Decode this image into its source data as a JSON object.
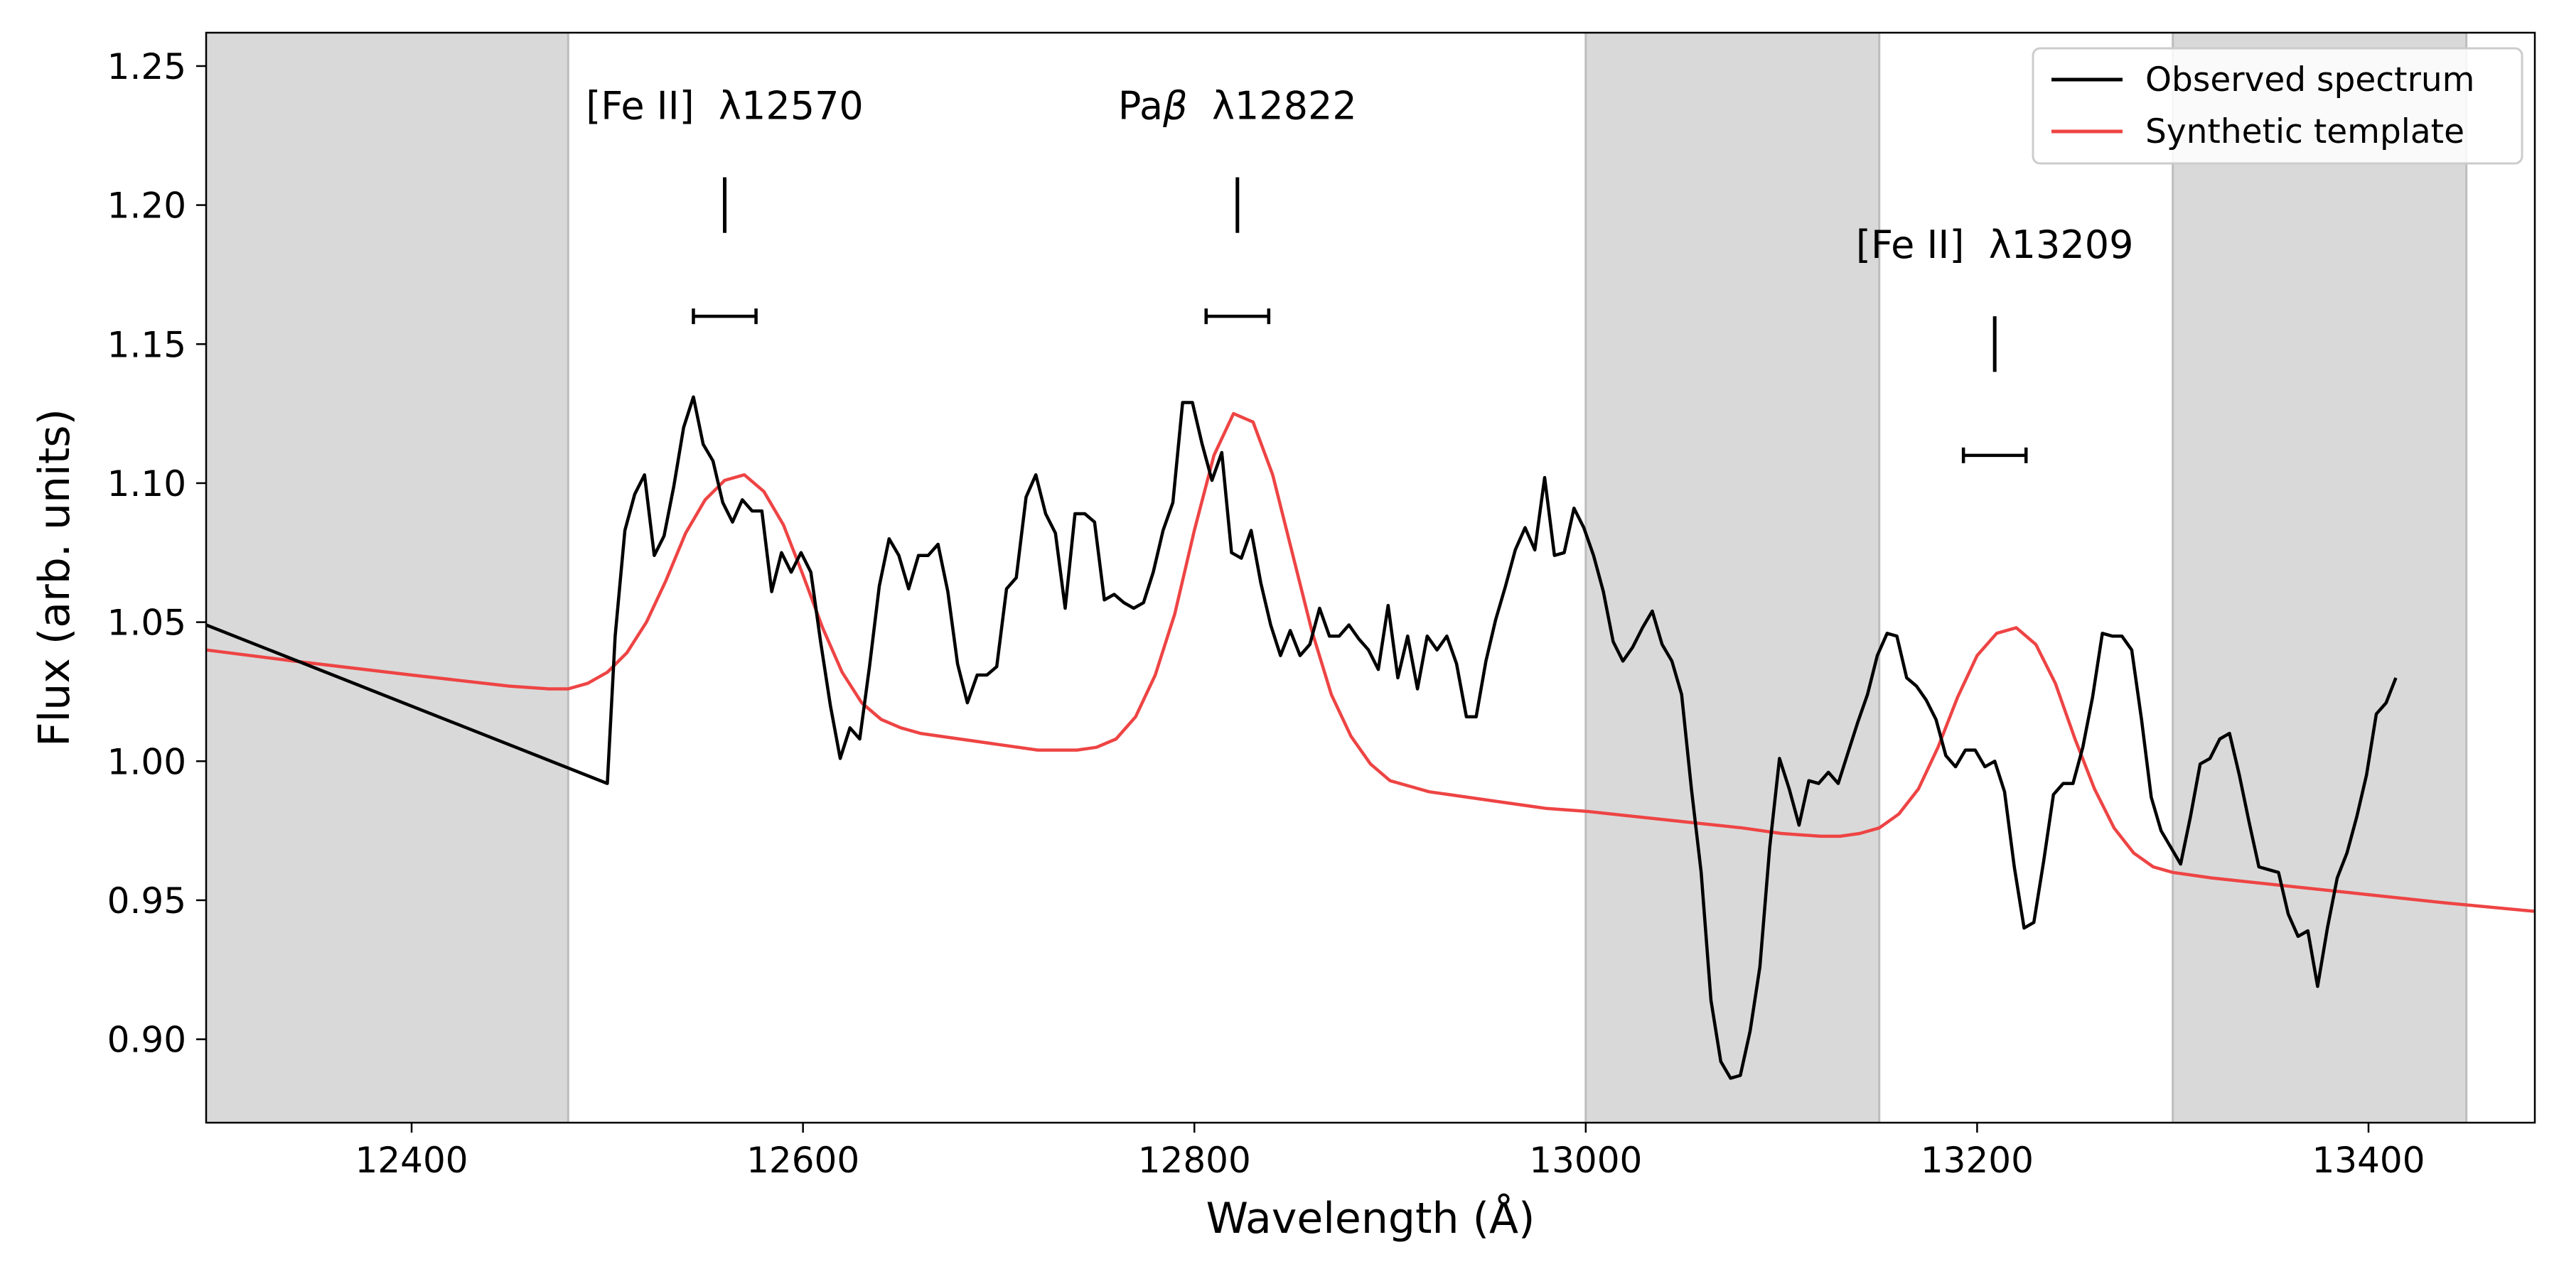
{
  "chart_data": {
    "type": "line",
    "title": "",
    "xlabel": "Wavelength (Å)",
    "ylabel": "Flux (arb. units)",
    "xlim": [
      12295,
      13485
    ],
    "ylim": [
      0.87,
      1.262
    ],
    "xticks": [
      12400,
      12600,
      12800,
      13000,
      13200,
      13400
    ],
    "yticks": [
      0.9,
      0.95,
      1.0,
      1.05,
      1.1,
      1.15,
      1.2,
      1.25
    ],
    "ytick_format": 2,
    "grid": false,
    "legend_position": "top-right",
    "shaded_regions": [
      [
        12295,
        12480
      ],
      [
        13000,
        13150
      ],
      [
        13300,
        13450
      ]
    ],
    "series": [
      {
        "name": "Observed spectrum",
        "color": "#000000",
        "points": [
          [
            12295,
            1.049
          ],
          [
            12500,
            0.992
          ],
          [
            12504,
            1.045
          ],
          [
            12509,
            1.083
          ],
          [
            12514,
            1.096
          ],
          [
            12519,
            1.103
          ],
          [
            12524,
            1.074
          ],
          [
            12529,
            1.081
          ],
          [
            12534,
            1.099
          ],
          [
            12539,
            1.12
          ],
          [
            12544,
            1.131
          ],
          [
            12549,
            1.114
          ],
          [
            12554,
            1.108
          ],
          [
            12559,
            1.093
          ],
          [
            12564,
            1.086
          ],
          [
            12569,
            1.094
          ],
          [
            12574,
            1.09
          ],
          [
            12579,
            1.09
          ],
          [
            12584,
            1.061
          ],
          [
            12589,
            1.075
          ],
          [
            12594,
            1.068
          ],
          [
            12599,
            1.075
          ],
          [
            12604,
            1.068
          ],
          [
            12609,
            1.043
          ],
          [
            12614,
            1.02
          ],
          [
            12619,
            1.001
          ],
          [
            12624,
            1.012
          ],
          [
            12629,
            1.008
          ],
          [
            12634,
            1.034
          ],
          [
            12639,
            1.063
          ],
          [
            12644,
            1.08
          ],
          [
            12649,
            1.074
          ],
          [
            12654,
            1.062
          ],
          [
            12659,
            1.074
          ],
          [
            12664,
            1.074
          ],
          [
            12669,
            1.078
          ],
          [
            12674,
            1.061
          ],
          [
            12679,
            1.035
          ],
          [
            12684,
            1.021
          ],
          [
            12689,
            1.031
          ],
          [
            12694,
            1.031
          ],
          [
            12699,
            1.034
          ],
          [
            12704,
            1.062
          ],
          [
            12709,
            1.066
          ],
          [
            12714,
            1.095
          ],
          [
            12719,
            1.103
          ],
          [
            12724,
            1.089
          ],
          [
            12729,
            1.082
          ],
          [
            12734,
            1.055
          ],
          [
            12739,
            1.089
          ],
          [
            12744,
            1.089
          ],
          [
            12749,
            1.086
          ],
          [
            12754,
            1.058
          ],
          [
            12759,
            1.06
          ],
          [
            12764,
            1.057
          ],
          [
            12769,
            1.055
          ],
          [
            12774,
            1.057
          ],
          [
            12779,
            1.068
          ],
          [
            12784,
            1.083
          ],
          [
            12789,
            1.093
          ],
          [
            12794,
            1.129
          ],
          [
            12799,
            1.129
          ],
          [
            12804,
            1.114
          ],
          [
            12809,
            1.101
          ],
          [
            12814,
            1.111
          ],
          [
            12819,
            1.075
          ],
          [
            12824,
            1.073
          ],
          [
            12829,
            1.083
          ],
          [
            12834,
            1.064
          ],
          [
            12839,
            1.049
          ],
          [
            12844,
            1.038
          ],
          [
            12849,
            1.047
          ],
          [
            12854,
            1.038
          ],
          [
            12859,
            1.042
          ],
          [
            12864,
            1.055
          ],
          [
            12869,
            1.045
          ],
          [
            12874,
            1.045
          ],
          [
            12879,
            1.049
          ],
          [
            12884,
            1.044
          ],
          [
            12889,
            1.04
          ],
          [
            12894,
            1.033
          ],
          [
            12899,
            1.056
          ],
          [
            12904,
            1.03
          ],
          [
            12909,
            1.045
          ],
          [
            12914,
            1.026
          ],
          [
            12919,
            1.045
          ],
          [
            12924,
            1.04
          ],
          [
            12929,
            1.045
          ],
          [
            12934,
            1.035
          ],
          [
            12939,
            1.016
          ],
          [
            12944,
            1.016
          ],
          [
            12949,
            1.036
          ],
          [
            12954,
            1.051
          ],
          [
            12959,
            1.063
          ],
          [
            12964,
            1.076
          ],
          [
            12969,
            1.084
          ],
          [
            12974,
            1.076
          ],
          [
            12979,
            1.102
          ],
          [
            12984,
            1.074
          ],
          [
            12989,
            1.075
          ],
          [
            12994,
            1.091
          ],
          [
            12999,
            1.084
          ],
          [
            13004,
            1.074
          ],
          [
            13009,
            1.061
          ],
          [
            13014,
            1.043
          ],
          [
            13019,
            1.036
          ],
          [
            13024,
            1.041
          ],
          [
            13029,
            1.048
          ],
          [
            13034,
            1.054
          ],
          [
            13039,
            1.042
          ],
          [
            13044,
            1.036
          ],
          [
            13049,
            1.024
          ],
          [
            13054,
            0.99
          ],
          [
            13059,
            0.96
          ],
          [
            13064,
            0.914
          ],
          [
            13069,
            0.892
          ],
          [
            13074,
            0.886
          ],
          [
            13079,
            0.887
          ],
          [
            13084,
            0.903
          ],
          [
            13089,
            0.926
          ],
          [
            13094,
            0.969
          ],
          [
            13099,
            1.001
          ],
          [
            13104,
            0.99
          ],
          [
            13109,
            0.977
          ],
          [
            13114,
            0.993
          ],
          [
            13119,
            0.992
          ],
          [
            13124,
            0.996
          ],
          [
            13129,
            0.992
          ],
          [
            13134,
            1.003
          ],
          [
            13139,
            1.014
          ],
          [
            13144,
            1.024
          ],
          [
            13149,
            1.038
          ],
          [
            13154,
            1.046
          ],
          [
            13159,
            1.045
          ],
          [
            13164,
            1.03
          ],
          [
            13169,
            1.027
          ],
          [
            13174,
            1.022
          ],
          [
            13179,
            1.015
          ],
          [
            13184,
            1.002
          ],
          [
            13189,
            0.998
          ],
          [
            13194,
            1.004
          ],
          [
            13199,
            1.004
          ],
          [
            13204,
            0.998
          ],
          [
            13209,
            1.0
          ],
          [
            13214,
            0.989
          ],
          [
            13219,
            0.962
          ],
          [
            13224,
            0.94
          ],
          [
            13229,
            0.942
          ],
          [
            13234,
            0.964
          ],
          [
            13239,
            0.988
          ],
          [
            13244,
            0.992
          ],
          [
            13249,
            0.992
          ],
          [
            13254,
            1.005
          ],
          [
            13259,
            1.023
          ],
          [
            13264,
            1.046
          ],
          [
            13269,
            1.045
          ],
          [
            13274,
            1.045
          ],
          [
            13279,
            1.04
          ],
          [
            13284,
            1.015
          ],
          [
            13289,
            0.987
          ],
          [
            13294,
            0.975
          ],
          [
            13299,
            0.969
          ],
          [
            13304,
            0.963
          ],
          [
            13309,
            0.98
          ],
          [
            13314,
            0.999
          ],
          [
            13319,
            1.001
          ],
          [
            13324,
            1.008
          ],
          [
            13329,
            1.01
          ],
          [
            13334,
            0.995
          ],
          [
            13339,
            0.978
          ],
          [
            13344,
            0.962
          ],
          [
            13349,
            0.961
          ],
          [
            13354,
            0.96
          ],
          [
            13359,
            0.945
          ],
          [
            13364,
            0.937
          ],
          [
            13369,
            0.939
          ],
          [
            13374,
            0.919
          ],
          [
            13379,
            0.94
          ],
          [
            13384,
            0.958
          ],
          [
            13389,
            0.967
          ],
          [
            13394,
            0.98
          ],
          [
            13399,
            0.995
          ],
          [
            13404,
            1.017
          ],
          [
            13409,
            1.021
          ],
          [
            13414,
            1.03
          ]
        ]
      },
      {
        "name": "Synthetic template",
        "color": "#ee4444",
        "points": [
          [
            12295,
            1.04
          ],
          [
            12340,
            1.036
          ],
          [
            12400,
            1.031
          ],
          [
            12450,
            1.027
          ],
          [
            12470,
            1.026
          ],
          [
            12480,
            1.026
          ],
          [
            12490,
            1.028
          ],
          [
            12500,
            1.032
          ],
          [
            12510,
            1.039
          ],
          [
            12520,
            1.05
          ],
          [
            12530,
            1.065
          ],
          [
            12540,
            1.082
          ],
          [
            12550,
            1.094
          ],
          [
            12560,
            1.101
          ],
          [
            12570,
            1.103
          ],
          [
            12580,
            1.097
          ],
          [
            12590,
            1.085
          ],
          [
            12600,
            1.067
          ],
          [
            12610,
            1.048
          ],
          [
            12620,
            1.032
          ],
          [
            12630,
            1.021
          ],
          [
            12640,
            1.015
          ],
          [
            12650,
            1.012
          ],
          [
            12660,
            1.01
          ],
          [
            12680,
            1.008
          ],
          [
            12700,
            1.006
          ],
          [
            12720,
            1.004
          ],
          [
            12740,
            1.004
          ],
          [
            12750,
            1.005
          ],
          [
            12760,
            1.008
          ],
          [
            12770,
            1.016
          ],
          [
            12780,
            1.031
          ],
          [
            12790,
            1.053
          ],
          [
            12800,
            1.083
          ],
          [
            12810,
            1.11
          ],
          [
            12820,
            1.125
          ],
          [
            12830,
            1.122
          ],
          [
            12840,
            1.103
          ],
          [
            12850,
            1.075
          ],
          [
            12860,
            1.047
          ],
          [
            12870,
            1.024
          ],
          [
            12880,
            1.009
          ],
          [
            12890,
            0.999
          ],
          [
            12900,
            0.993
          ],
          [
            12910,
            0.991
          ],
          [
            12920,
            0.989
          ],
          [
            12940,
            0.987
          ],
          [
            12960,
            0.985
          ],
          [
            12980,
            0.983
          ],
          [
            13000,
            0.982
          ],
          [
            13040,
            0.979
          ],
          [
            13080,
            0.976
          ],
          [
            13100,
            0.974
          ],
          [
            13120,
            0.973
          ],
          [
            13130,
            0.973
          ],
          [
            13140,
            0.974
          ],
          [
            13150,
            0.976
          ],
          [
            13160,
            0.981
          ],
          [
            13170,
            0.99
          ],
          [
            13180,
            1.005
          ],
          [
            13190,
            1.023
          ],
          [
            13200,
            1.038
          ],
          [
            13210,
            1.046
          ],
          [
            13220,
            1.048
          ],
          [
            13230,
            1.042
          ],
          [
            13240,
            1.028
          ],
          [
            13250,
            1.008
          ],
          [
            13260,
            0.99
          ],
          [
            13270,
            0.976
          ],
          [
            13280,
            0.967
          ],
          [
            13290,
            0.962
          ],
          [
            13300,
            0.96
          ],
          [
            13320,
            0.958
          ],
          [
            13360,
            0.955
          ],
          [
            13400,
            0.952
          ],
          [
            13440,
            0.949
          ],
          [
            13485,
            0.946
          ]
        ]
      }
    ],
    "annotations": [
      {
        "prefix": "[Fe II]",
        "greek": "",
        "wavelength": "λ12570",
        "x": 12560,
        "text_y": 1.231,
        "tick_top": 1.21,
        "tick_bottom": 1.19,
        "err_y": 1.16,
        "err_lo": 12544,
        "err_hi": 12576
      },
      {
        "prefix": "Pa",
        "greek": "β",
        "wavelength": "λ12822",
        "x": 12822,
        "text_y": 1.231,
        "tick_top": 1.21,
        "tick_bottom": 1.19,
        "err_y": 1.16,
        "err_lo": 12806,
        "err_hi": 12838
      },
      {
        "prefix": "[Fe II]",
        "greek": "",
        "wavelength": "λ13209",
        "x": 13209,
        "text_y": 1.181,
        "tick_top": 1.16,
        "tick_bottom": 1.14,
        "err_y": 1.11,
        "err_lo": 13193,
        "err_hi": 13225
      }
    ]
  }
}
